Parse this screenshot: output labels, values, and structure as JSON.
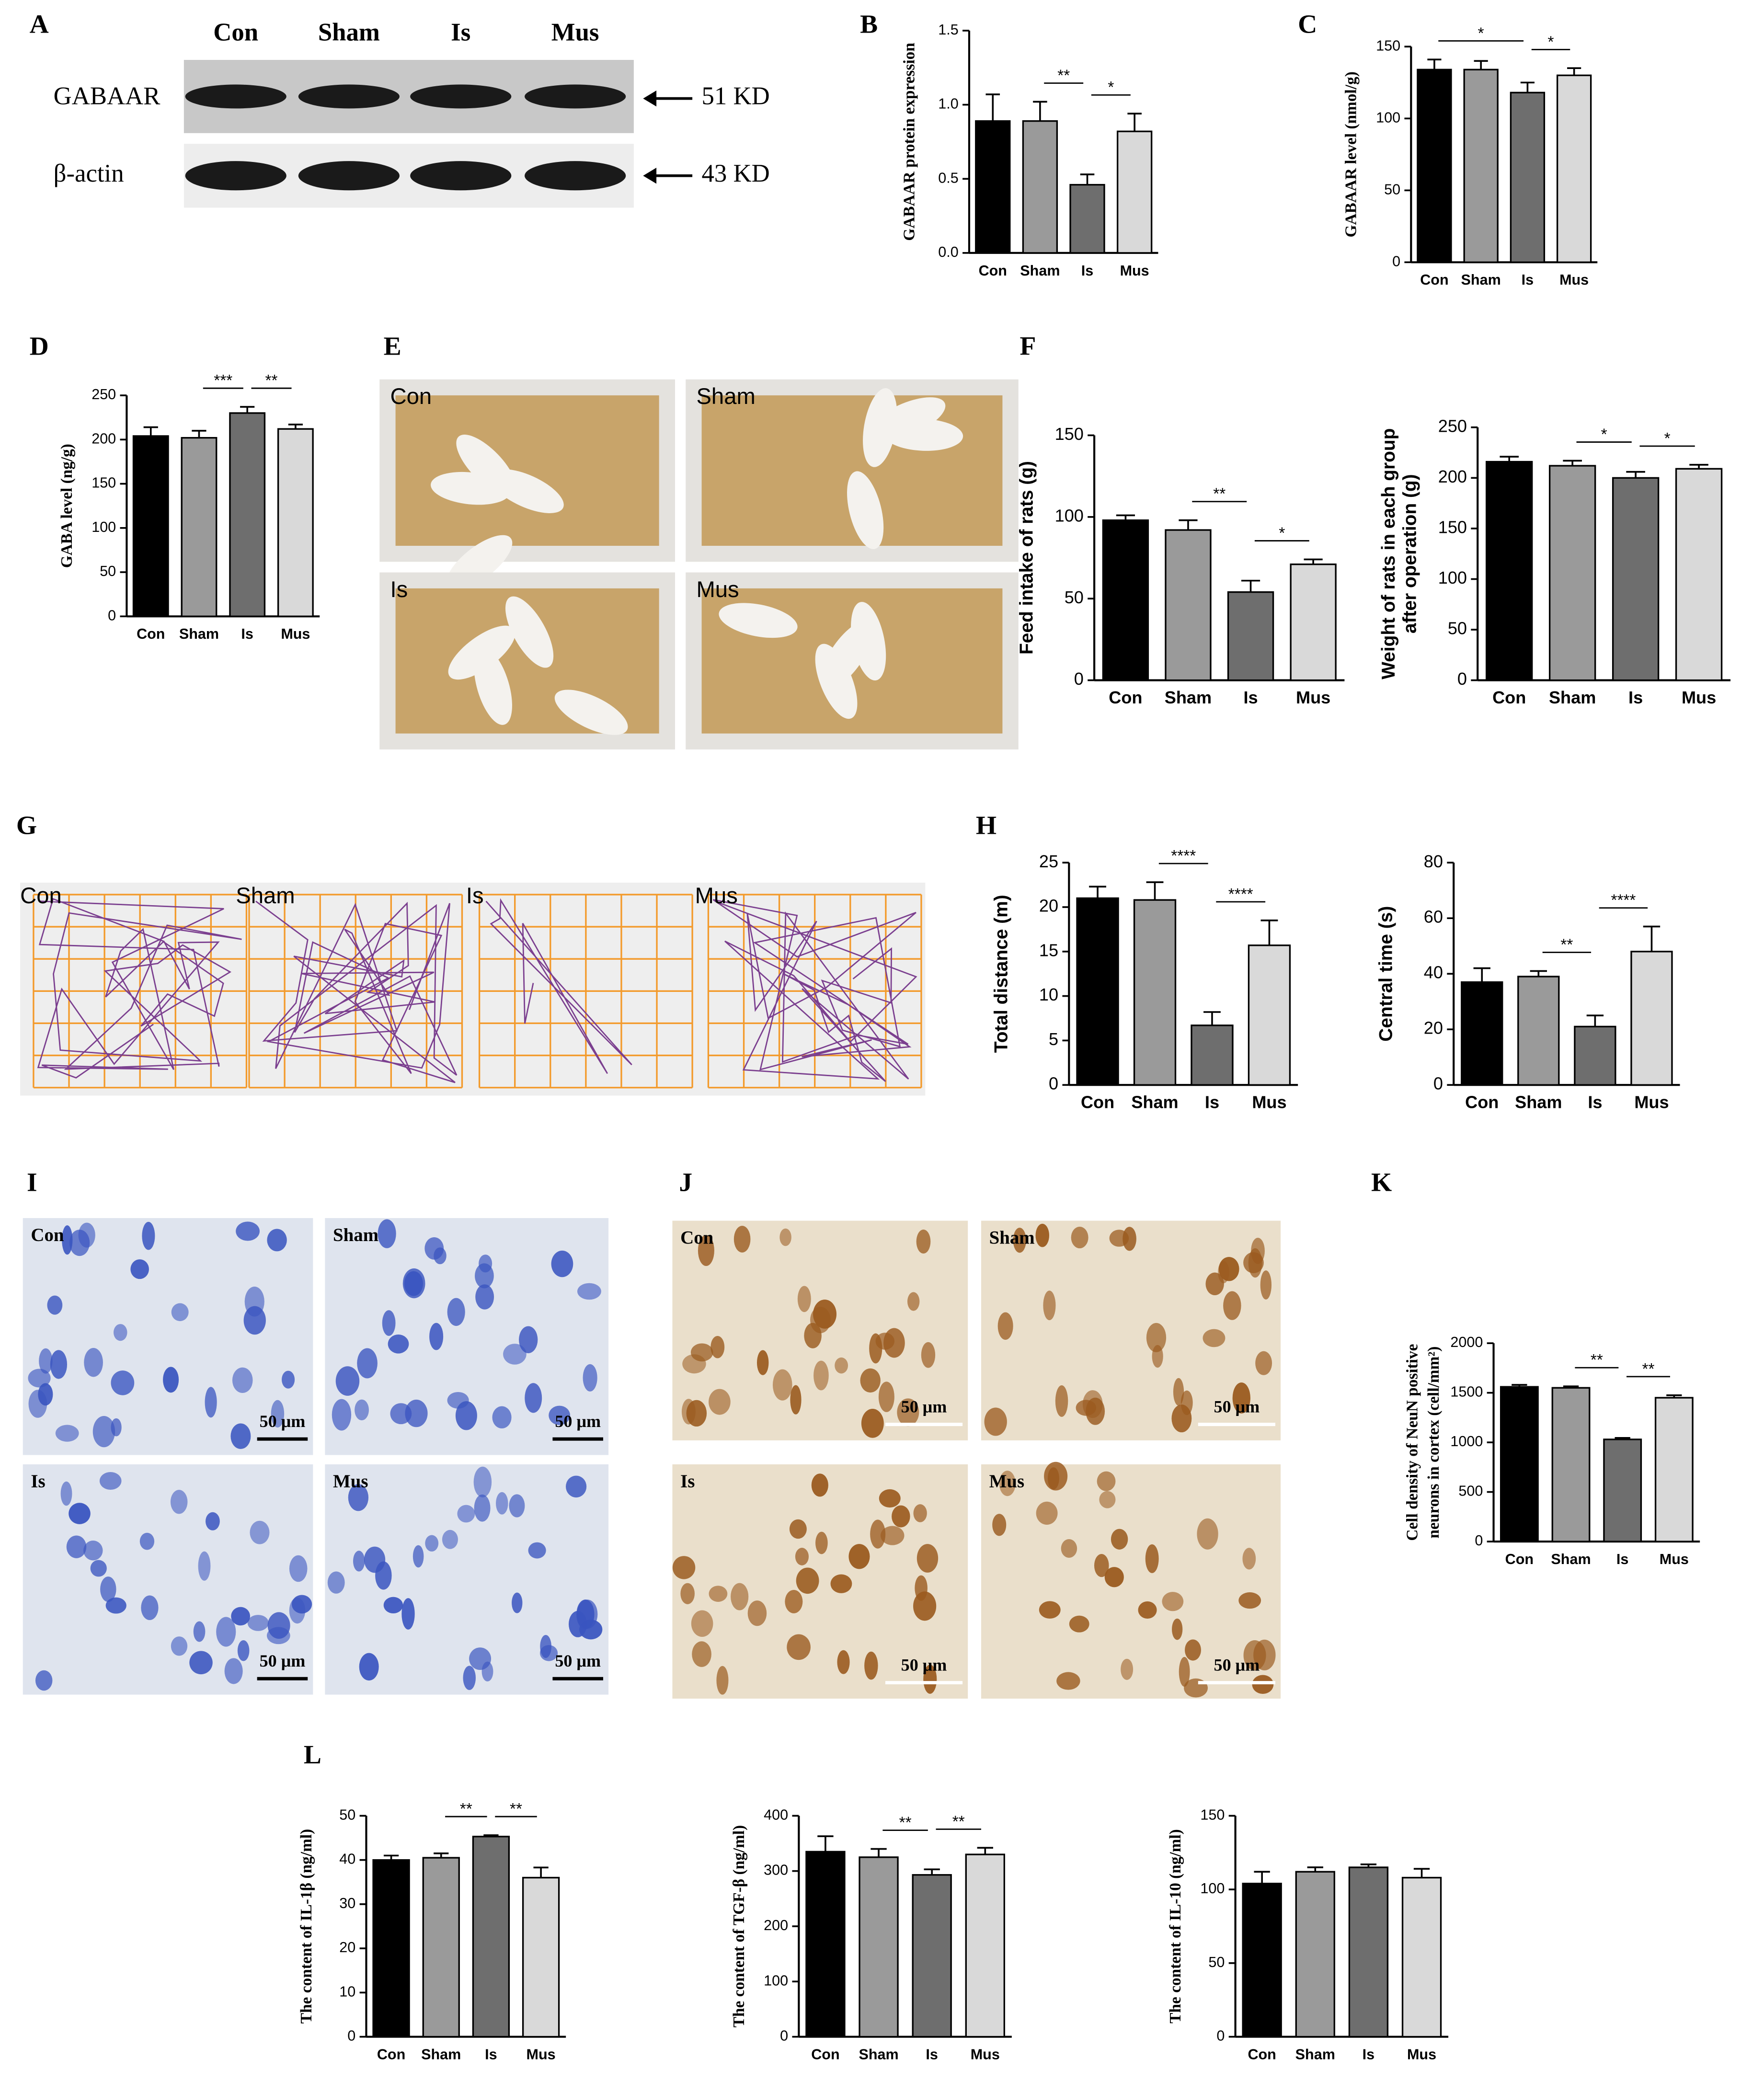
{
  "figure": {
    "panel_labels": [
      "A",
      "B",
      "C",
      "D",
      "E",
      "F",
      "G",
      "H",
      "I",
      "J",
      "K",
      "L"
    ],
    "blot": {
      "lanes": [
        "Con",
        "Sham",
        "Is",
        "Mus"
      ],
      "proteins": [
        "GABAAR",
        "β-actin"
      ],
      "sizes": [
        "51 KD",
        "43 KD"
      ]
    },
    "photos_E": [
      "Con",
      "Sham",
      "Is",
      "Mus"
    ],
    "tracks_G": [
      "Con",
      "Sham",
      "Is",
      "Mus"
    ],
    "stain_I": [
      "Con",
      "Sham",
      "Is",
      "Mus"
    ],
    "stain_J": [
      "Con",
      "Sham",
      "Is",
      "Mus"
    ],
    "scale_bar": "50 μm"
  },
  "chart_data": [
    {
      "type": "bar",
      "ylabel": "GABAAR protein expression",
      "categories": [
        "Con",
        "Sham",
        "Is",
        "Mus"
      ],
      "values": [
        0.89,
        0.89,
        0.46,
        0.82
      ],
      "errors": [
        0.18,
        0.13,
        0.07,
        0.12
      ],
      "colors": [
        "#000000",
        "#9a9a9a",
        "#6e6e6e",
        "#d9d9d9"
      ],
      "ylim": [
        0,
        1.5
      ],
      "yticks": [
        {
          "value": 0,
          "label": "0.0"
        },
        0.5,
        {
          "value": 1,
          "label": "1.0"
        },
        {
          "value": 1.5,
          "label": "1.5"
        }
      ],
      "annotations": [
        {
          "text": "**",
          "between": [
            "Sham",
            "Is"
          ]
        },
        {
          "text": "*",
          "between": [
            "Is",
            "Mus"
          ]
        }
      ]
    },
    {
      "type": "bar",
      "ylabel": "GABAAR level (nmol/g)",
      "categories": [
        "Con",
        "Sham",
        "Is",
        "Mus"
      ],
      "values": [
        134,
        134,
        118,
        130
      ],
      "errors": [
        7,
        6,
        7,
        5
      ],
      "colors": [
        "#000000",
        "#9a9a9a",
        "#6e6e6e",
        "#d9d9d9"
      ],
      "ylim": [
        0,
        150
      ],
      "yticks": [
        0,
        50,
        100,
        150
      ],
      "annotations": [
        {
          "text": "*",
          "between": [
            "Con",
            "Is"
          ]
        },
        {
          "text": "*",
          "between": [
            "Is",
            "Mus"
          ]
        }
      ]
    },
    {
      "type": "bar",
      "ylabel": "GABA level (ng/g)",
      "categories": [
        "Con",
        "Sham",
        "Is",
        "Mus"
      ],
      "values": [
        204,
        202,
        230,
        212
      ],
      "errors": [
        10,
        8,
        7,
        5
      ],
      "colors": [
        "#000000",
        "#9a9a9a",
        "#6e6e6e",
        "#d9d9d9"
      ],
      "ylim": [
        0,
        250
      ],
      "yticks": [
        0,
        50,
        100,
        150,
        200,
        250
      ],
      "annotations": [
        {
          "text": "***",
          "between": [
            "Sham",
            "Is"
          ]
        },
        {
          "text": "**",
          "between": [
            "Is",
            "Mus"
          ]
        }
      ]
    },
    {
      "type": "bar",
      "ylabel": "Feed intake of rats (g)",
      "categories": [
        "Con",
        "Sham",
        "Is",
        "Mus"
      ],
      "values": [
        98,
        92,
        54,
        71
      ],
      "errors": [
        3,
        6,
        7,
        3
      ],
      "colors": [
        "#000000",
        "#9a9a9a",
        "#6e6e6e",
        "#d9d9d9"
      ],
      "ylim": [
        0,
        150
      ],
      "yticks": [
        0,
        50,
        100,
        150
      ],
      "annotations": [
        {
          "text": "**",
          "between": [
            "Sham",
            "Is"
          ]
        },
        {
          "text": "*",
          "between": [
            "Is",
            "Mus"
          ]
        }
      ]
    },
    {
      "type": "bar",
      "ylabel": [
        "Weight of rats in each group",
        "after operation (g)"
      ],
      "categories": [
        "Con",
        "Sham",
        "Is",
        "Mus"
      ],
      "values": [
        216,
        212,
        200,
        209
      ],
      "errors": [
        5,
        5,
        6,
        4
      ],
      "colors": [
        "#000000",
        "#9a9a9a",
        "#6e6e6e",
        "#d9d9d9"
      ],
      "ylim": [
        0,
        250
      ],
      "yticks": [
        0,
        50,
        100,
        150,
        200,
        250
      ],
      "annotations": [
        {
          "text": "*",
          "between": [
            "Sham",
            "Is"
          ]
        },
        {
          "text": "*",
          "between": [
            "Is",
            "Mus"
          ]
        }
      ]
    },
    {
      "type": "bar",
      "ylabel": "Total distance (m)",
      "categories": [
        "Con",
        "Sham",
        "Is",
        "Mus"
      ],
      "values": [
        21,
        20.8,
        6.7,
        15.7
      ],
      "errors": [
        1.3,
        2,
        1.5,
        2.8
      ],
      "colors": [
        "#000000",
        "#9a9a9a",
        "#6e6e6e",
        "#d9d9d9"
      ],
      "ylim": [
        0,
        25
      ],
      "yticks": [
        0,
        5,
        10,
        15,
        20,
        25
      ],
      "annotations": [
        {
          "text": "****",
          "between": [
            "Sham",
            "Is"
          ]
        },
        {
          "text": "****",
          "between": [
            "Is",
            "Mus"
          ]
        }
      ]
    },
    {
      "type": "bar",
      "ylabel": "Central time (s)",
      "categories": [
        "Con",
        "Sham",
        "Is",
        "Mus"
      ],
      "values": [
        37,
        39,
        21,
        48
      ],
      "errors": [
        5,
        2,
        4,
        9
      ],
      "colors": [
        "#000000",
        "#9a9a9a",
        "#6e6e6e",
        "#d9d9d9"
      ],
      "ylim": [
        0,
        80
      ],
      "yticks": [
        0,
        20,
        40,
        60,
        80
      ],
      "annotations": [
        {
          "text": "**",
          "between": [
            "Sham",
            "Is"
          ]
        },
        {
          "text": "****",
          "between": [
            "Is",
            "Mus"
          ]
        }
      ]
    },
    {
      "type": "bar",
      "ylabel": [
        "Cell density of NeuN positive",
        "neurons in cortex (cell/mm²)"
      ],
      "categories": [
        "Con",
        "Sham",
        "Is",
        "Mus"
      ],
      "values": [
        1560,
        1550,
        1030,
        1450
      ],
      "errors": [
        20,
        15,
        15,
        25
      ],
      "colors": [
        "#000000",
        "#9a9a9a",
        "#6e6e6e",
        "#d9d9d9"
      ],
      "ylim": [
        0,
        2000
      ],
      "yticks": [
        0,
        500,
        1000,
        1500,
        2000
      ],
      "annotations": [
        {
          "text": "**",
          "between": [
            "Sham",
            "Is"
          ]
        },
        {
          "text": "**",
          "between": [
            "Is",
            "Mus"
          ]
        }
      ]
    },
    {
      "type": "bar",
      "ylabel": "The content of IL-1β (ng/ml)",
      "categories": [
        "Con",
        "Sham",
        "Is",
        "Mus"
      ],
      "values": [
        40,
        40.5,
        45.3,
        36
      ],
      "errors": [
        1,
        1,
        0.3,
        2.3
      ],
      "colors": [
        "#000000",
        "#9a9a9a",
        "#6e6e6e",
        "#d9d9d9"
      ],
      "ylim": [
        0,
        50
      ],
      "yticks": [
        0,
        10,
        20,
        30,
        40,
        50
      ],
      "annotations": [
        {
          "text": "**",
          "between": [
            "Sham",
            "Is"
          ]
        },
        {
          "text": "**",
          "between": [
            "Is",
            "Mus"
          ]
        }
      ]
    },
    {
      "type": "bar",
      "ylabel": "The content of TGF-β (ng/ml)",
      "categories": [
        "Con",
        "Sham",
        "Is",
        "Mus"
      ],
      "values": [
        335,
        325,
        293,
        330
      ],
      "errors": [
        28,
        15,
        10,
        12
      ],
      "colors": [
        "#000000",
        "#9a9a9a",
        "#6e6e6e",
        "#d9d9d9"
      ],
      "ylim": [
        0,
        400
      ],
      "yticks": [
        0,
        100,
        200,
        300,
        400
      ],
      "annotations": [
        {
          "text": "**",
          "between": [
            "Sham",
            "Is"
          ]
        },
        {
          "text": "**",
          "between": [
            "Is",
            "Mus"
          ]
        }
      ]
    },
    {
      "type": "bar",
      "ylabel": "The content of IL-10 (ng/ml)",
      "categories": [
        "Con",
        "Sham",
        "Is",
        "Mus"
      ],
      "values": [
        104,
        112,
        115,
        108
      ],
      "errors": [
        8,
        3,
        2,
        6
      ],
      "colors": [
        "#000000",
        "#9a9a9a",
        "#6e6e6e",
        "#d9d9d9"
      ],
      "ylim": [
        0,
        150
      ],
      "yticks": [
        0,
        50,
        100,
        150
      ],
      "annotations": []
    }
  ]
}
